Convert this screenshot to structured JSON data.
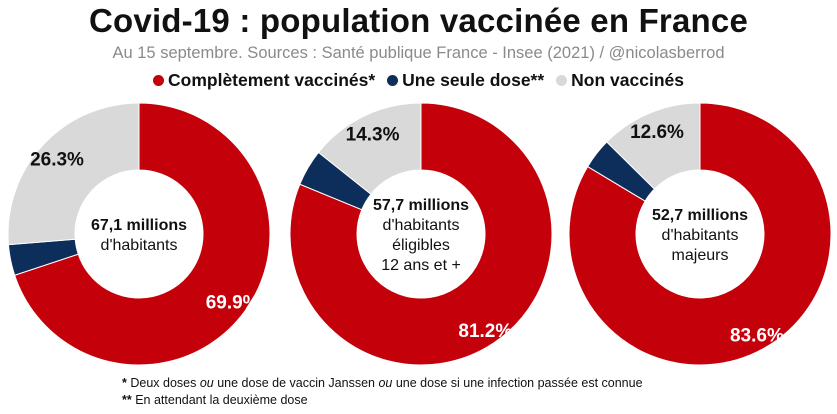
{
  "title": "Covid-19 : population vaccinée en France",
  "subtitle": "Au 15 septembre. Sources : Santé publique France - Insee (2021) / @nicolasberrod",
  "legend": {
    "full_label": "Complètement vaccinés*",
    "one_label": "Une seule dose**",
    "none_label": "Non vaccinés"
  },
  "colors": {
    "full": "#c4000a",
    "one": "#0d2d5a",
    "none": "#d9d9d9"
  },
  "chart_data": [
    {
      "type": "pie",
      "donut": true,
      "categories": [
        "Complètement vaccinés*",
        "Une seule dose**",
        "Non vaccinés"
      ],
      "values": [
        69.9,
        3.8,
        26.3
      ],
      "labels": [
        "69.9%",
        "",
        "26.3%"
      ],
      "center_lines": [
        "67,1 millions",
        "d'habitants"
      ]
    },
    {
      "type": "pie",
      "donut": true,
      "categories": [
        "Complètement vaccinés*",
        "Une seule dose**",
        "Non vaccinés"
      ],
      "values": [
        81.2,
        4.5,
        14.3
      ],
      "labels": [
        "81.2%",
        "",
        "14.3%"
      ],
      "center_lines": [
        "57,7 millions",
        "d'habitants",
        "éligibles",
        "12 ans et +"
      ]
    },
    {
      "type": "pie",
      "donut": true,
      "categories": [
        "Complètement vaccinés*",
        "Une seule dose**",
        "Non vaccinés"
      ],
      "values": [
        83.6,
        3.8,
        12.6
      ],
      "labels": [
        "83.6%",
        "",
        "12.6%"
      ],
      "center_lines": [
        "52,7 millions",
        "d'habitants",
        "majeurs"
      ]
    }
  ],
  "footnotes": {
    "note1_marker": "*",
    "note1_a": " Deux doses ",
    "note1_or1": "ou",
    "note1_b": " une dose de vaccin Janssen ",
    "note1_or2": "ou",
    "note1_c": " une dose si une infection passée est connue",
    "note2_marker": "**",
    "note2_text": " En attendant la deuxième dose"
  }
}
